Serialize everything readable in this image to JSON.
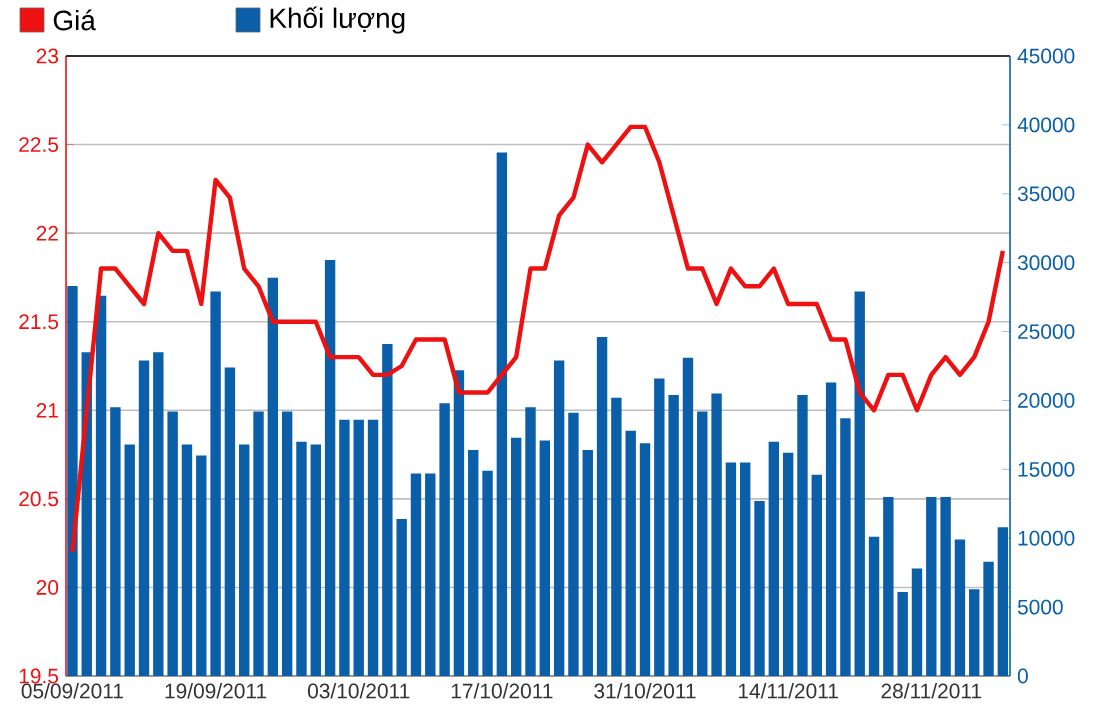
{
  "chart_data": {
    "type": "bar",
    "categories": [
      "05/09/2011",
      null,
      null,
      null,
      null,
      null,
      null,
      null,
      null,
      null,
      "19/09/2011",
      null,
      null,
      null,
      null,
      null,
      null,
      null,
      null,
      null,
      "03/10/2011",
      null,
      null,
      null,
      null,
      null,
      null,
      null,
      null,
      null,
      "17/10/2011",
      null,
      null,
      null,
      null,
      null,
      null,
      null,
      null,
      null,
      "31/10/2011",
      null,
      null,
      null,
      null,
      null,
      null,
      null,
      null,
      null,
      "14/11/2011",
      null,
      null,
      null,
      null,
      null,
      null,
      null,
      null,
      null,
      "28/11/2011",
      null,
      null,
      null,
      null,
      null
    ],
    "series": [
      {
        "name": "Giá",
        "type": "line",
        "color": "#ee1111",
        "values": [
          20.2,
          21.0,
          21.8,
          21.8,
          21.7,
          21.6,
          22.0,
          21.9,
          21.9,
          21.6,
          22.3,
          22.2,
          21.8,
          21.7,
          21.5,
          21.5,
          21.5,
          21.5,
          21.3,
          21.3,
          21.3,
          21.2,
          21.2,
          21.25,
          21.4,
          21.4,
          21.4,
          21.1,
          21.1,
          21.1,
          21.2,
          21.3,
          21.8,
          21.8,
          22.1,
          22.2,
          22.5,
          22.4,
          22.5,
          22.6,
          22.6,
          22.4,
          22.1,
          21.8,
          21.8,
          21.6,
          21.8,
          21.7,
          21.7,
          21.8,
          21.6,
          21.6,
          21.6,
          21.4,
          21.4,
          21.1,
          21.0,
          21.2,
          21.2,
          21.0,
          21.2,
          21.3,
          21.2,
          21.3,
          21.5,
          21.9
        ]
      },
      {
        "name": "Khối lượng",
        "color": "#0b5ea8",
        "axis": "y2",
        "values": [
          28300,
          23500,
          27600,
          19500,
          16800,
          22900,
          23500,
          19200,
          16800,
          16000,
          27900,
          22400,
          16800,
          19200,
          28900,
          19200,
          17000,
          16800,
          30200,
          18600,
          18600,
          18600,
          24100,
          11400,
          14700,
          14700,
          19800,
          22200,
          16400,
          14900,
          38000,
          17300,
          19500,
          17100,
          22900,
          19100,
          16400,
          24600,
          20200,
          17800,
          16900,
          21600,
          20400,
          23100,
          19200,
          20500,
          15500,
          15500,
          12700,
          17000,
          16200,
          20400,
          14600,
          21300,
          18700,
          27900,
          10100,
          13000,
          6100,
          7800,
          13000,
          13000,
          9900,
          6300,
          8300,
          10800
        ]
      }
    ],
    "ylim": [
      19.5,
      23
    ],
    "yticks": [
      19.5,
      20,
      20.5,
      21,
      21.5,
      22,
      22.5,
      23
    ],
    "y2lim": [
      0,
      45000
    ],
    "y2ticks": [
      0,
      5000,
      10000,
      15000,
      20000,
      25000,
      30000,
      35000,
      40000,
      45000
    ],
    "grid": "y",
    "legend": "top left"
  }
}
